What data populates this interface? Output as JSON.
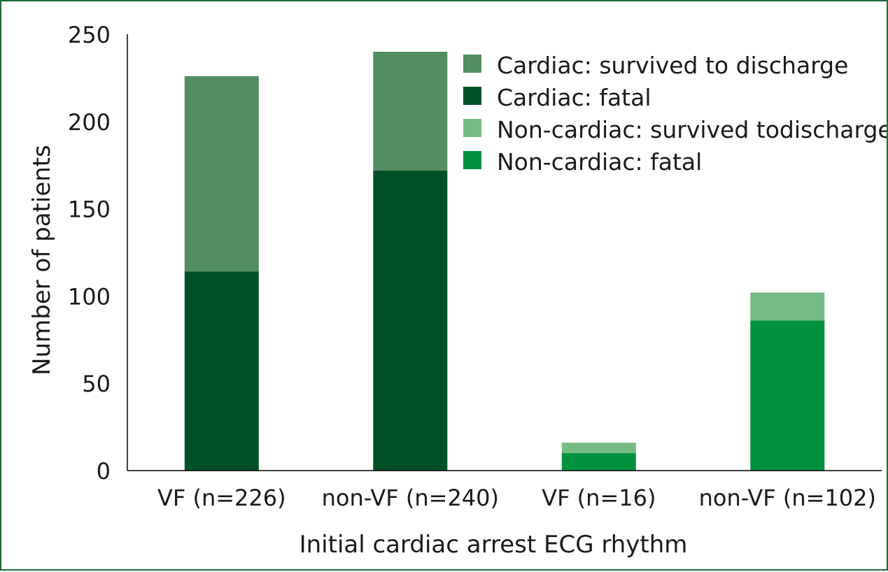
{
  "chart_data": {
    "type": "bar",
    "stacked": true,
    "categories": [
      "VF (n=226)",
      "non-VF (n=240)",
      "VF (n=16)",
      "non-VF (n=102)"
    ],
    "series": [
      {
        "name": "Cardiac: fatal",
        "color": "#005226",
        "values": [
          114,
          172,
          0,
          0
        ]
      },
      {
        "name": "Cardiac: survived to discharge",
        "color": "#528e62",
        "values": [
          112,
          68,
          0,
          0
        ]
      },
      {
        "name": "Non-cardiac: fatal",
        "color": "#00923f",
        "values": [
          0,
          0,
          10,
          86
        ]
      },
      {
        "name": "Non-cardiac: survived todischarge",
        "color": "#76bb85",
        "values": [
          0,
          0,
          6,
          16
        ]
      }
    ],
    "legend_order": [
      "Cardiac: survived to discharge",
      "Cardiac: fatal",
      "Non-cardiac: survived todischarge",
      "Non-cardiac: fatal"
    ],
    "legend_position": "top-right",
    "xlabel": "Initial cardiac arrest ECG rhythm",
    "ylabel": "Number of patients",
    "ylim": [
      0,
      250
    ],
    "yticks": [
      0,
      50,
      100,
      150,
      200,
      250
    ],
    "grid": false
  }
}
